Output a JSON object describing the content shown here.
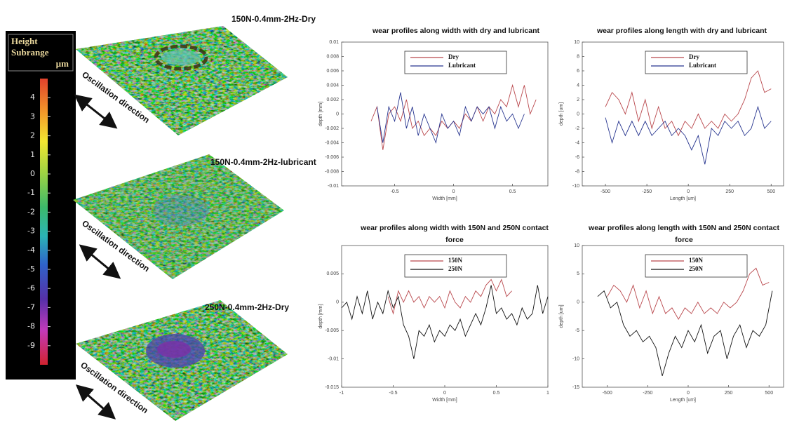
{
  "colorbar": {
    "title": [
      "Height",
      "Subrange",
      "µm"
    ],
    "ticks": [
      4,
      3,
      2,
      1,
      0,
      -1,
      -2,
      -3,
      -4,
      -5,
      -6,
      -7,
      -8,
      -9
    ],
    "lim": [
      -10,
      5
    ]
  },
  "surfaces": [
    {
      "label": "150N-0.4mm-2Hz-Dry",
      "direction_label": "Oscillation direction"
    },
    {
      "label": "150N-0.4mm-2Hz-lubricant",
      "direction_label": "Oscillation direction"
    },
    {
      "label": "250N-0.4mm-2Hz-Dry",
      "direction_label": "Oscillation direction"
    }
  ],
  "chart_data": [
    {
      "type": "line",
      "title": "wear profiles along width with dry and lubricant",
      "x_label": "Width [mm]",
      "y_label": "depth [mm]",
      "xlim": [
        -0.95,
        0.8
      ],
      "xticks": [
        -0.5,
        0,
        0.5
      ],
      "ylim": [
        -0.01,
        0.01
      ],
      "yticks": [
        -0.01,
        -0.008,
        -0.006,
        -0.004,
        -0.002,
        0,
        0.002,
        0.004,
        0.006,
        0.008,
        0.01
      ],
      "legend": "upper left",
      "series": [
        {
          "name": "Dry",
          "color": "#b9474c",
          "x": [
            -0.7,
            -0.65,
            -0.6,
            -0.55,
            -0.5,
            -0.45,
            -0.4,
            -0.35,
            -0.3,
            -0.25,
            -0.2,
            -0.15,
            -0.1,
            -0.05,
            0,
            0.05,
            0.1,
            0.15,
            0.2,
            0.25,
            0.3,
            0.35,
            0.4,
            0.45,
            0.5,
            0.55,
            0.6,
            0.65,
            0.7
          ],
          "values": [
            -0.001,
            0.001,
            -0.005,
            0,
            0.001,
            -0.001,
            0.002,
            -0.002,
            -0.001,
            -0.003,
            -0.002,
            -0.003,
            -0.001,
            -0.002,
            -0.001,
            -0.002,
            0,
            -0.001,
            0.001,
            -0.001,
            0.001,
            0,
            0.002,
            0.001,
            0.004,
            0.001,
            0.004,
            0,
            0.002
          ]
        },
        {
          "name": "Lubricant",
          "color": "#27358f",
          "x": [
            -0.65,
            -0.6,
            -0.55,
            -0.5,
            -0.45,
            -0.4,
            -0.35,
            -0.3,
            -0.25,
            -0.2,
            -0.15,
            -0.1,
            -0.05,
            0,
            0.05,
            0.1,
            0.15,
            0.2,
            0.25,
            0.3,
            0.35,
            0.4,
            0.45,
            0.5,
            0.55,
            0.6
          ],
          "values": [
            0.001,
            -0.004,
            0.001,
            -0.001,
            0.003,
            -0.002,
            0.001,
            -0.003,
            0,
            -0.002,
            -0.004,
            0,
            -0.002,
            -0.001,
            -0.003,
            0.001,
            -0.001,
            0.001,
            0,
            0.001,
            -0.002,
            0.001,
            -0.001,
            0,
            -0.002,
            0
          ]
        }
      ]
    },
    {
      "type": "line",
      "title": "wear profiles along length with dry and lubricant",
      "x_label": "Length [um]",
      "y_label": "depth [um]",
      "xlim": [
        -640,
        575
      ],
      "xticks": [
        -500,
        -250,
        0,
        250,
        500
      ],
      "ylim": [
        -10,
        10
      ],
      "yticks": [
        -10,
        -8,
        -6,
        -4,
        -2,
        0,
        2,
        4,
        6,
        8,
        10
      ],
      "legend": "upper left",
      "series": [
        {
          "name": "Dry",
          "color": "#b9474c",
          "x": [
            -500,
            -460,
            -420,
            -380,
            -340,
            -300,
            -260,
            -220,
            -180,
            -140,
            -100,
            -60,
            -20,
            20,
            60,
            100,
            140,
            180,
            220,
            260,
            300,
            340,
            380,
            420,
            460,
            500
          ],
          "values": [
            1,
            3,
            2,
            0,
            3,
            -1,
            2,
            -2,
            1,
            -2,
            -1,
            -3,
            -1,
            -2,
            0,
            -2,
            -1,
            -2,
            0,
            -1,
            0,
            2,
            5,
            6,
            3,
            3.5
          ]
        },
        {
          "name": "Lubricant",
          "color": "#27358f",
          "x": [
            -500,
            -460,
            -420,
            -380,
            -340,
            -300,
            -260,
            -220,
            -180,
            -140,
            -100,
            -60,
            -20,
            20,
            60,
            100,
            140,
            180,
            220,
            260,
            300,
            340,
            380,
            420,
            460,
            500
          ],
          "values": [
            -0.5,
            -4,
            -1,
            -3,
            -1,
            -3,
            -1,
            -3,
            -2,
            -1,
            -3,
            -2,
            -3,
            -5,
            -3,
            -7,
            -2,
            -3,
            -1,
            -2,
            -1,
            -3,
            -2,
            1,
            -2,
            -1
          ]
        }
      ]
    },
    {
      "type": "line",
      "title": "wear profiles along width with 150N and 250N contact force",
      "x_label": "Width [mm]",
      "y_label": "depth [mm]",
      "xlim": [
        -1,
        1
      ],
      "xticks": [
        -1,
        -0.5,
        0,
        0.5,
        1
      ],
      "ylim": [
        -0.015,
        0.01
      ],
      "yticks": [
        -0.015,
        -0.01,
        -0.005,
        0,
        0.005
      ],
      "legend": "upper left",
      "series": [
        {
          "name": "150N",
          "color": "#b9474c",
          "x": [
            -0.55,
            -0.5,
            -0.45,
            -0.4,
            -0.35,
            -0.3,
            -0.25,
            -0.2,
            -0.15,
            -0.1,
            -0.05,
            0,
            0.05,
            0.1,
            0.15,
            0.2,
            0.25,
            0.3,
            0.35,
            0.4,
            0.45,
            0.5,
            0.55,
            0.6,
            0.65
          ],
          "values": [
            0.001,
            -0.002,
            0.002,
            0,
            0.002,
            0,
            0.001,
            -0.001,
            0.001,
            0,
            0.001,
            -0.001,
            0.002,
            0,
            -0.001,
            0.001,
            0,
            0.002,
            0.001,
            0.003,
            0.004,
            0.002,
            0.004,
            0.001,
            0.002
          ]
        },
        {
          "name": "250N",
          "color": "#111111",
          "x": [
            -1,
            -0.95,
            -0.9,
            -0.85,
            -0.8,
            -0.75,
            -0.7,
            -0.65,
            -0.6,
            -0.55,
            -0.5,
            -0.45,
            -0.4,
            -0.35,
            -0.3,
            -0.25,
            -0.2,
            -0.15,
            -0.1,
            -0.05,
            0,
            0.05,
            0.1,
            0.15,
            0.2,
            0.25,
            0.3,
            0.35,
            0.4,
            0.45,
            0.5,
            0.55,
            0.6,
            0.65,
            0.7,
            0.75,
            0.8,
            0.85,
            0.9,
            0.95,
            1
          ],
          "values": [
            -0.001,
            0,
            -0.003,
            0.001,
            -0.002,
            0.002,
            -0.003,
            0,
            -0.002,
            0.002,
            -0.001,
            0.001,
            -0.004,
            -0.006,
            -0.01,
            -0.005,
            -0.006,
            -0.004,
            -0.007,
            -0.005,
            -0.006,
            -0.004,
            -0.005,
            -0.003,
            -0.006,
            -0.004,
            -0.002,
            -0.004,
            -0.001,
            0.003,
            -0.002,
            -0.001,
            -0.003,
            -0.002,
            -0.004,
            -0.001,
            -0.003,
            -0.002,
            0.003,
            -0.002,
            0.001
          ]
        }
      ]
    },
    {
      "type": "line",
      "title": "wear profiles along length with 150N and 250N contact force",
      "x_label": "Length [um]",
      "y_label": "depth [um]",
      "xlim": [
        -655,
        590
      ],
      "xticks": [
        -500,
        -250,
        0,
        250,
        500
      ],
      "ylim": [
        -15,
        10
      ],
      "yticks": [
        -15,
        -10,
        -5,
        0,
        5,
        10
      ],
      "legend": "upper left",
      "series": [
        {
          "name": "150N",
          "color": "#b9474c",
          "x": [
            -500,
            -460,
            -420,
            -380,
            -340,
            -300,
            -260,
            -220,
            -180,
            -140,
            -100,
            -60,
            -20,
            20,
            60,
            100,
            140,
            180,
            220,
            260,
            300,
            340,
            380,
            420,
            460,
            500
          ],
          "values": [
            1,
            3,
            2,
            0,
            3,
            -1,
            2,
            -2,
            1,
            -2,
            -1,
            -3,
            -1,
            -2,
            0,
            -2,
            -1,
            -2,
            0,
            -1,
            0,
            2,
            5,
            6,
            3,
            3.5
          ]
        },
        {
          "name": "250N",
          "color": "#111111",
          "x": [
            -560,
            -520,
            -480,
            -440,
            -400,
            -360,
            -320,
            -280,
            -240,
            -200,
            -160,
            -120,
            -80,
            -40,
            0,
            40,
            80,
            120,
            160,
            200,
            240,
            280,
            320,
            360,
            400,
            440,
            480,
            520
          ],
          "values": [
            1,
            2,
            -1,
            0,
            -4,
            -6,
            -5,
            -7,
            -6,
            -8,
            -13,
            -9,
            -6,
            -8,
            -5,
            -7,
            -4,
            -9,
            -6,
            -5,
            -10,
            -6,
            -4,
            -8,
            -5,
            -6,
            -4,
            2
          ]
        }
      ]
    }
  ]
}
